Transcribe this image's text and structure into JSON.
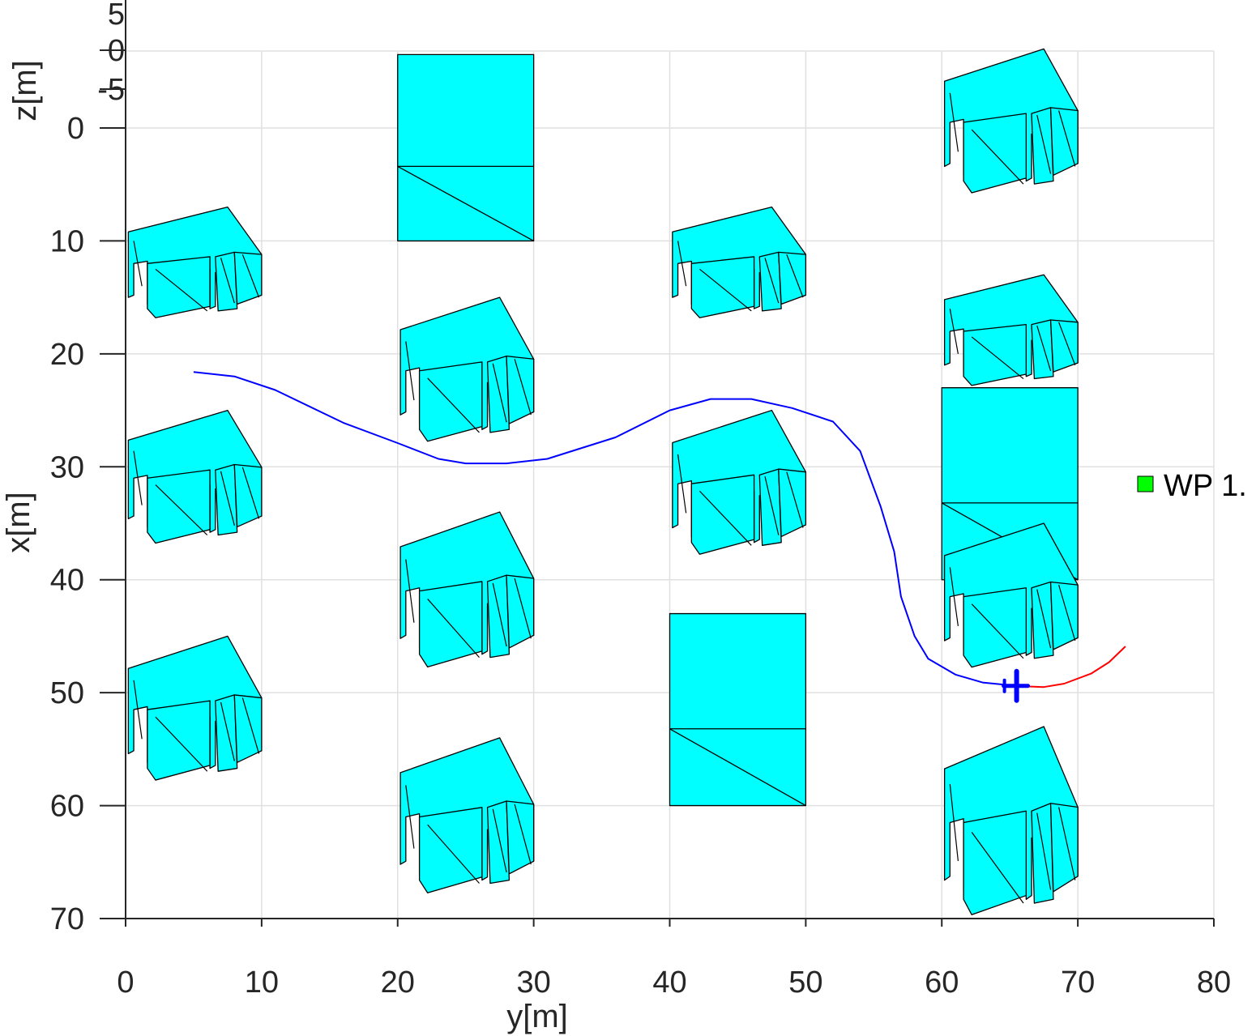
{
  "chart_data": {
    "type": "line",
    "title": "",
    "xlabel": "y[m]",
    "ylabel": "x[m]",
    "zlabel": "z[m]",
    "xlim": [
      0,
      80
    ],
    "ylim": [
      70,
      -7
    ],
    "zlim": [
      -5,
      5
    ],
    "x_ticks": [
      "0",
      "10",
      "20",
      "30",
      "40",
      "50",
      "60",
      "70",
      "80"
    ],
    "y_ticks": [
      "0",
      "10",
      "20",
      "30",
      "40",
      "50",
      "60",
      "70"
    ],
    "z_ticks": [
      "5",
      "0",
      "-5"
    ],
    "grid": true,
    "colors": {
      "building_fill": "#00ffff",
      "building_edge": "#000000",
      "trajectory": "#0000ff",
      "planned_path": "#ff0000",
      "waypoint": "#00ff00",
      "aircraft": "#0000ff",
      "grid": "#e0e0e0",
      "axis": "#262626"
    },
    "series": [
      {
        "name": "",
        "role": "flown trajectory",
        "points": [
          [
            5,
            21.6
          ],
          [
            8,
            22.0
          ],
          [
            11,
            23.2
          ],
          [
            16,
            26.1
          ],
          [
            20,
            27.9
          ],
          [
            23,
            29.3
          ],
          [
            25,
            29.7
          ],
          [
            28,
            29.7
          ],
          [
            31,
            29.3
          ],
          [
            36,
            27.4
          ],
          [
            40,
            25.0
          ],
          [
            43,
            24.0
          ],
          [
            46,
            24.0
          ],
          [
            49,
            24.8
          ],
          [
            52,
            26.0
          ],
          [
            54,
            28.6
          ],
          [
            55.5,
            33.5
          ],
          [
            56.5,
            37.5
          ],
          [
            57,
            41.5
          ],
          [
            58,
            45.0
          ],
          [
            59,
            47.0
          ],
          [
            61,
            48.4
          ],
          [
            63,
            49.1
          ],
          [
            65.5,
            49.4
          ]
        ]
      },
      {
        "name": "",
        "role": "planned path",
        "points": [
          [
            65.5,
            49.4
          ],
          [
            67.5,
            49.5
          ],
          [
            69,
            49.2
          ],
          [
            71,
            48.3
          ],
          [
            72.3,
            47.3
          ],
          [
            73.5,
            45.9
          ]
        ]
      }
    ],
    "aircraft": {
      "y": 65.5,
      "x": 49.4
    },
    "legend": {
      "entries": [
        "WP 1."
      ],
      "placement": "right"
    },
    "buildings": [
      {
        "shape": "H",
        "y": [
          0,
          10
        ],
        "x": [
          7,
          17
        ]
      },
      {
        "shape": "H",
        "y": [
          20,
          30
        ],
        "x": [
          15,
          28
        ]
      },
      {
        "shape": "box",
        "y": [
          20,
          30
        ],
        "x": [
          -6.5,
          10
        ]
      },
      {
        "shape": "H",
        "y": [
          40,
          50
        ],
        "x": [
          7,
          17
        ]
      },
      {
        "shape": "H",
        "y": [
          60,
          70
        ],
        "x": [
          -7,
          6
        ]
      },
      {
        "shape": "H",
        "y": [
          0,
          10
        ],
        "x": [
          25,
          37
        ]
      },
      {
        "shape": "H",
        "y": [
          20,
          30
        ],
        "x": [
          34,
          48
        ]
      },
      {
        "shape": "H",
        "y": [
          40,
          50
        ],
        "x": [
          25,
          38
        ]
      },
      {
        "shape": "H",
        "y": [
          60,
          70
        ],
        "x": [
          13,
          23
        ]
      },
      {
        "shape": "box",
        "y": [
          60,
          70
        ],
        "x": [
          23,
          40
        ]
      },
      {
        "shape": "H",
        "y": [
          0,
          10
        ],
        "x": [
          45,
          58
        ]
      },
      {
        "shape": "H",
        "y": [
          20,
          30
        ],
        "x": [
          54,
          68
        ]
      },
      {
        "shape": "box",
        "y": [
          40,
          50
        ],
        "x": [
          43,
          60
        ]
      },
      {
        "shape": "H",
        "y": [
          60,
          70
        ],
        "x": [
          35,
          48
        ]
      },
      {
        "shape": "H",
        "y": [
          60,
          70
        ],
        "x": [
          53,
          70
        ]
      }
    ]
  }
}
